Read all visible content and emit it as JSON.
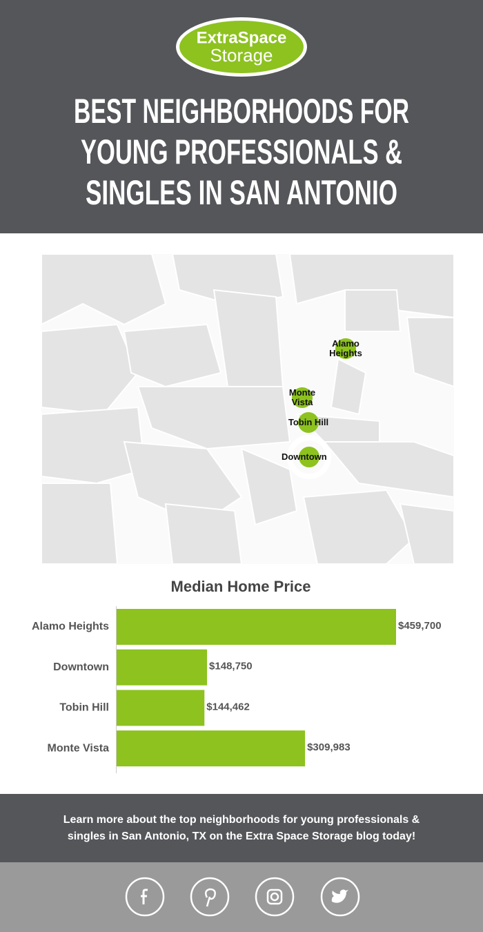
{
  "logo": {
    "line1": "ExtraSpace",
    "line2": "Storage"
  },
  "header": {
    "title_lines": [
      "BEST NEIGHBORHOODS FOR",
      "YOUNG PROFESSIONALS &",
      "SINGLES IN SAN ANTONIO"
    ]
  },
  "map": {
    "labels": [
      "Alamo Heights",
      "Monte Vista",
      "Tobin Hill",
      "Downtown"
    ]
  },
  "chart_data": {
    "type": "bar",
    "orientation": "horizontal",
    "title": "Median Home Price",
    "categories": [
      "Alamo Heights",
      "Downtown",
      "Tobin Hill",
      "Monte Vista"
    ],
    "values": [
      459700,
      148750,
      144462,
      309983
    ],
    "value_labels": [
      "$459,700",
      "$148,750",
      "$144,462",
      "$309,983"
    ],
    "color": "#8dc21f"
  },
  "footer": {
    "text": "Learn more about the top neighborhoods for young professionals & singles in San Antonio, TX on the Extra Space Storage blog today!"
  }
}
